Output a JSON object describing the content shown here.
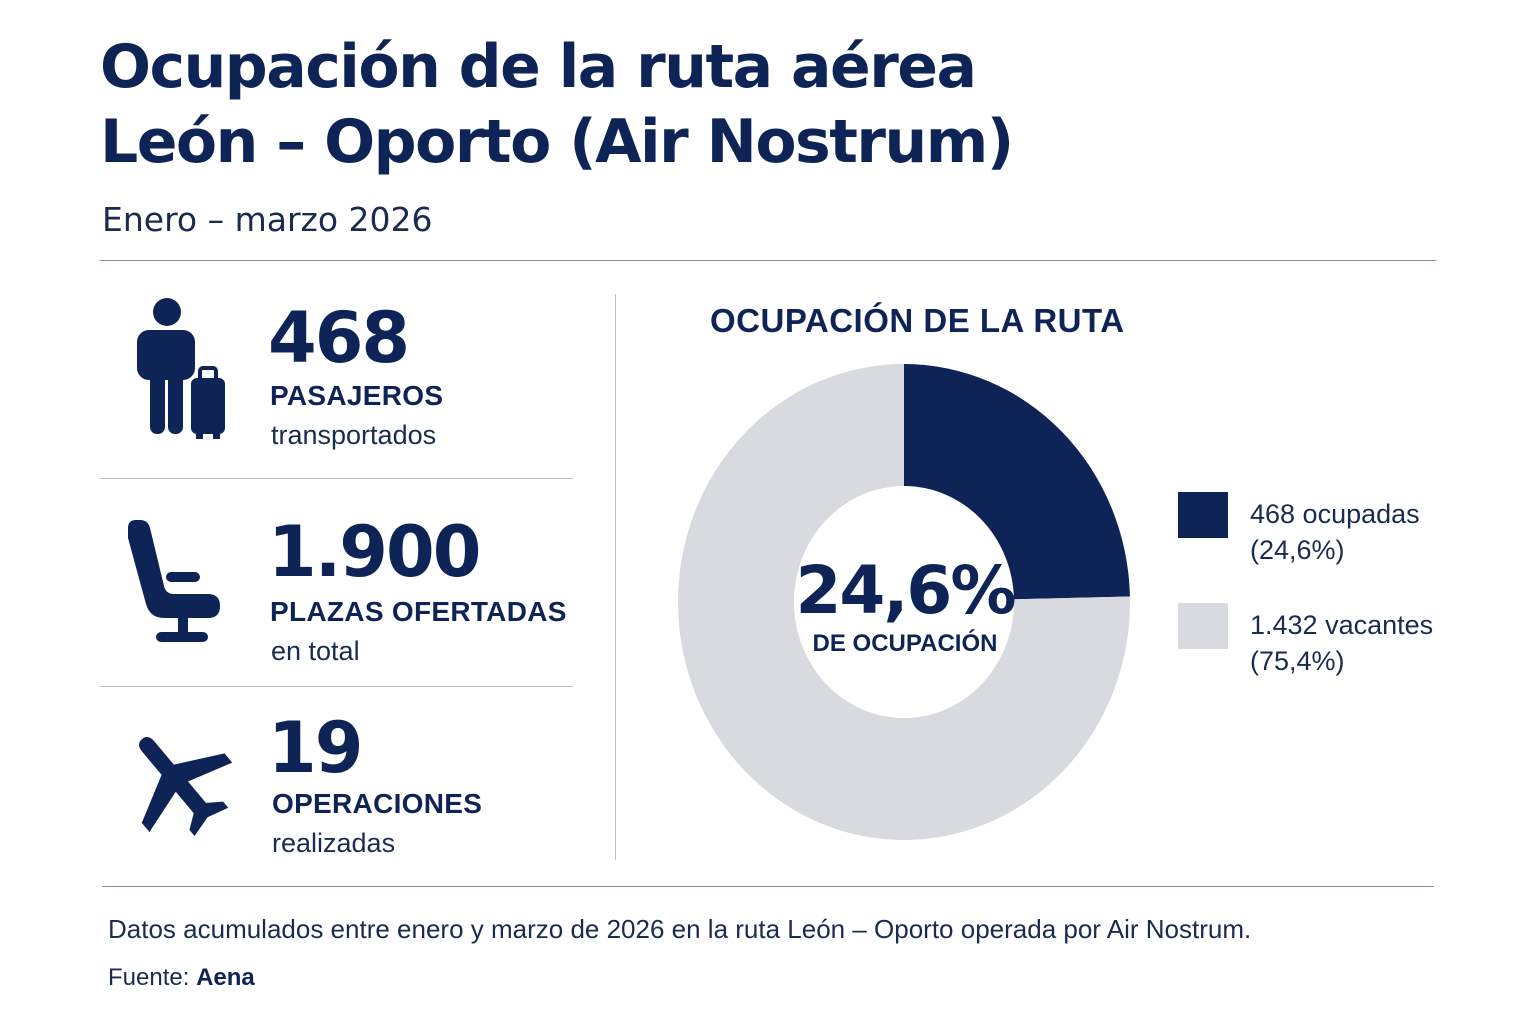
{
  "header": {
    "title_line1": "Ocupación de la ruta aérea",
    "title_line2": "León – Oporto (Air Nostrum)",
    "subtitle": "Enero – marzo 2026"
  },
  "stats": [
    {
      "icon": "passenger-with-suitcase-icon",
      "value": "468",
      "label": "PASAJEROS",
      "sublabel": "transportados"
    },
    {
      "icon": "seat-icon",
      "value": "1.900",
      "label": "PLAZAS OFERTADAS",
      "sublabel": "en total"
    },
    {
      "icon": "airplane-icon",
      "value": "19",
      "label": "OPERACIONES",
      "sublabel": "realizadas"
    }
  ],
  "chart_data": {
    "type": "pie",
    "title": "OCUPACIÓN DE LA RUTA",
    "center_value": "24,6%",
    "center_label": "DE OCUPACIÓN",
    "slices": [
      {
        "name": "ocupadas",
        "value": 468,
        "percent": 24.6,
        "color": "#0f2456",
        "legend_line1": "468 ocupadas",
        "legend_line2": "(24,6%)"
      },
      {
        "name": "vacantes",
        "value": 1432,
        "percent": 75.4,
        "color": "#d9dadf",
        "legend_line1": "1.432 vacantes",
        "legend_line2": "(75,4%)"
      }
    ]
  },
  "footer": {
    "note": "Datos acumulados entre enero y marzo de 2026 en la ruta León – Oporto operada por Air Nostrum.",
    "source_label": "Fuente:",
    "source_name": "Aena"
  }
}
